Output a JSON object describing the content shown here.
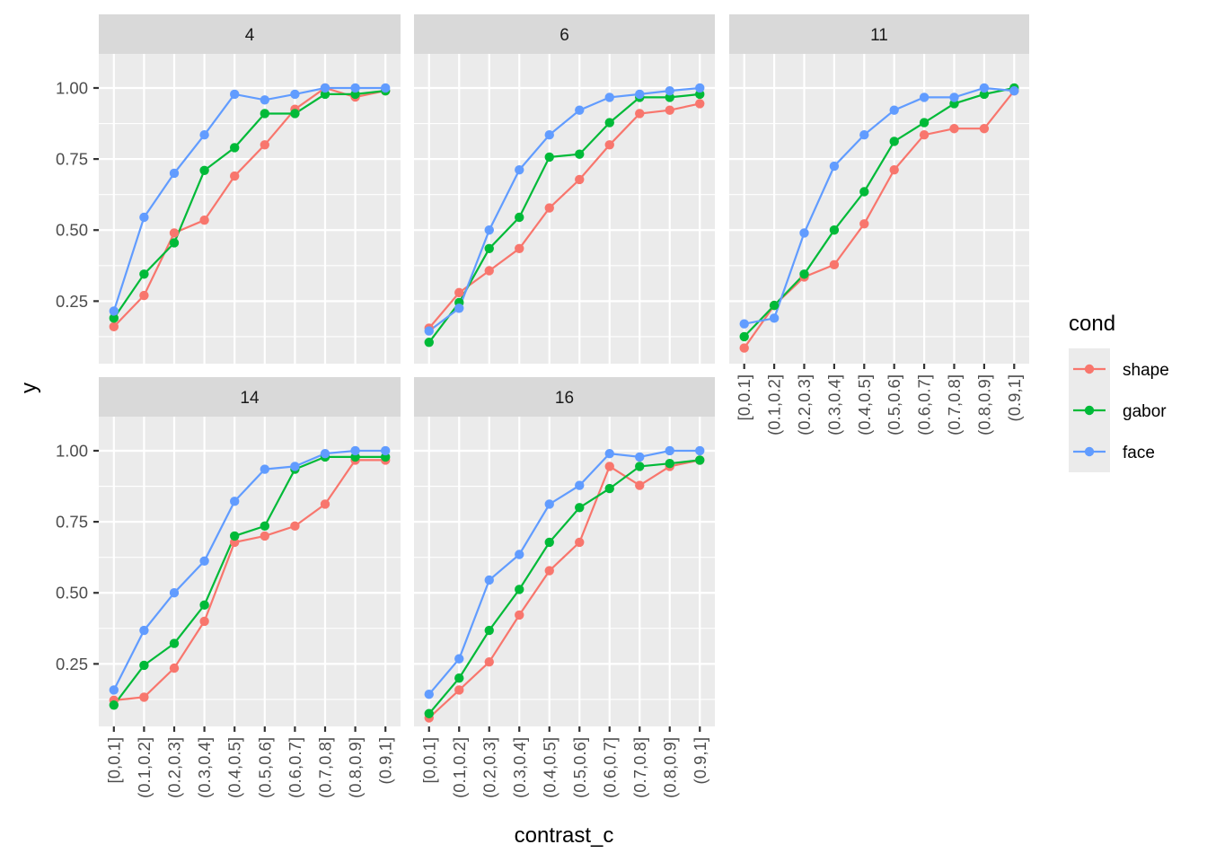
{
  "chart_data": {
    "type": "line",
    "xlabel": "contrast_c",
    "ylabel": "y",
    "ylim": [
      0.03,
      1.12
    ],
    "y_ticks": [
      0.25,
      0.5,
      0.75,
      1.0
    ],
    "y_tick_labels": [
      "0.25",
      "0.50",
      "0.75",
      "1.00"
    ],
    "categories": [
      "[0,0.1]",
      "(0.1,0.2]",
      "(0.2,0.3]",
      "(0.3,0.4]",
      "(0.4,0.5]",
      "(0.5,0.6]",
      "(0.6,0.7]",
      "(0.7,0.8]",
      "(0.8,0.9]",
      "(0.9,1]"
    ],
    "legend": {
      "title": "cond",
      "position": "right",
      "entries": [
        {
          "name": "shape",
          "color": "#F8766D"
        },
        {
          "name": "gabor",
          "color": "#00BA38"
        },
        {
          "name": "face",
          "color": "#619CFF"
        }
      ]
    },
    "panels": [
      {
        "label": "4",
        "series": [
          {
            "name": "shape",
            "values": [
              0.16,
              0.27,
              0.49,
              0.535,
              0.69,
              0.8,
              0.925,
              1.0,
              0.968,
              0.99
            ]
          },
          {
            "name": "gabor",
            "values": [
              0.19,
              0.345,
              0.455,
              0.71,
              0.79,
              0.91,
              0.91,
              0.978,
              0.978,
              0.99
            ]
          },
          {
            "name": "face",
            "values": [
              0.215,
              0.545,
              0.7,
              0.835,
              0.978,
              0.958,
              0.978,
              1.0,
              1.0,
              1.0
            ]
          }
        ]
      },
      {
        "label": "6",
        "series": [
          {
            "name": "shape",
            "values": [
              0.155,
              0.28,
              0.357,
              0.435,
              0.578,
              0.678,
              0.8,
              0.91,
              0.922,
              0.945
            ]
          },
          {
            "name": "gabor",
            "values": [
              0.105,
              0.245,
              0.435,
              0.545,
              0.757,
              0.767,
              0.878,
              0.967,
              0.967,
              0.978
            ]
          },
          {
            "name": "face",
            "values": [
              0.145,
              0.225,
              0.5,
              0.712,
              0.835,
              0.922,
              0.967,
              0.978,
              0.99,
              1.0
            ]
          }
        ]
      },
      {
        "label": "11",
        "series": [
          {
            "name": "shape",
            "values": [
              0.085,
              0.235,
              0.335,
              0.378,
              0.522,
              0.712,
              0.835,
              0.857,
              0.857,
              0.99
            ]
          },
          {
            "name": "gabor",
            "values": [
              0.125,
              0.235,
              0.345,
              0.5,
              0.635,
              0.812,
              0.878,
              0.945,
              0.978,
              1.0
            ]
          },
          {
            "name": "face",
            "values": [
              0.17,
              0.19,
              0.49,
              0.725,
              0.835,
              0.922,
              0.967,
              0.967,
              1.0,
              0.99
            ]
          }
        ]
      },
      {
        "label": "14",
        "series": [
          {
            "name": "shape",
            "values": [
              0.122,
              0.133,
              0.235,
              0.4,
              0.678,
              0.7,
              0.735,
              0.812,
              0.967,
              0.967
            ]
          },
          {
            "name": "gabor",
            "values": [
              0.105,
              0.245,
              0.322,
              0.457,
              0.7,
              0.735,
              0.935,
              0.978,
              0.978,
              0.978
            ]
          },
          {
            "name": "face",
            "values": [
              0.158,
              0.368,
              0.5,
              0.612,
              0.822,
              0.935,
              0.945,
              0.99,
              1.0,
              1.0
            ]
          }
        ]
      },
      {
        "label": "16",
        "series": [
          {
            "name": "shape",
            "values": [
              0.06,
              0.158,
              0.257,
              0.422,
              0.578,
              0.678,
              0.945,
              0.878,
              0.945,
              0.967
            ]
          },
          {
            "name": "gabor",
            "values": [
              0.075,
              0.2,
              0.368,
              0.512,
              0.678,
              0.8,
              0.867,
              0.945,
              0.955,
              0.967
            ]
          },
          {
            "name": "face",
            "values": [
              0.143,
              0.268,
              0.545,
              0.635,
              0.812,
              0.878,
              0.99,
              0.978,
              1.0,
              1.0
            ]
          }
        ]
      }
    ]
  }
}
